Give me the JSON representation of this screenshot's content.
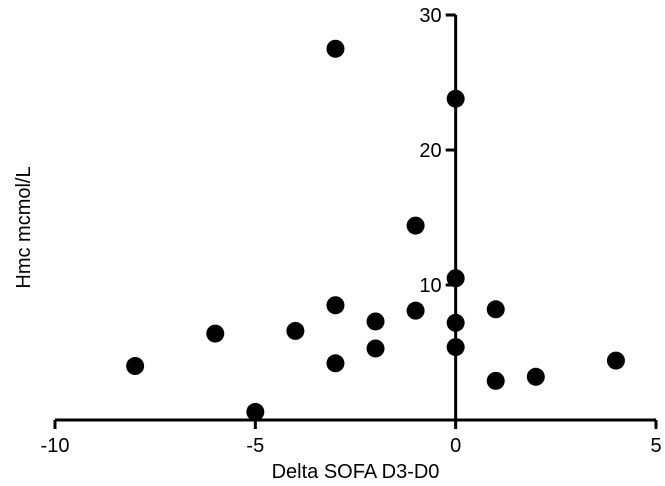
{
  "chart_data": {
    "type": "scatter",
    "title": "",
    "xlabel": "Delta SOFA  D3-D0",
    "ylabel": "Hmc mcmol/L",
    "xlim": [
      -10,
      5
    ],
    "ylim": [
      0,
      30
    ],
    "x_ticks": [
      -10,
      -5,
      0,
      5
    ],
    "x_tick_labels": [
      "-10",
      "-5",
      "0",
      "5"
    ],
    "y_ticks": [
      10,
      20,
      30
    ],
    "y_tick_labels": [
      "10",
      "20",
      "30"
    ],
    "grid": false,
    "legend": "none",
    "marker_color": "#000000",
    "series": [
      {
        "x": [
          -8,
          -6,
          -5,
          -4,
          -3,
          -3,
          -3,
          -2,
          -2,
          -1,
          -1,
          0,
          0,
          0,
          0,
          1,
          1,
          2,
          4
        ],
        "y": [
          4,
          6.4,
          0.6,
          6.6,
          4.2,
          8.5,
          27.5,
          5.3,
          7.3,
          8.1,
          14.4,
          23.8,
          10.5,
          7.2,
          5.4,
          2.9,
          8.2,
          3.2,
          4.4
        ]
      }
    ]
  }
}
